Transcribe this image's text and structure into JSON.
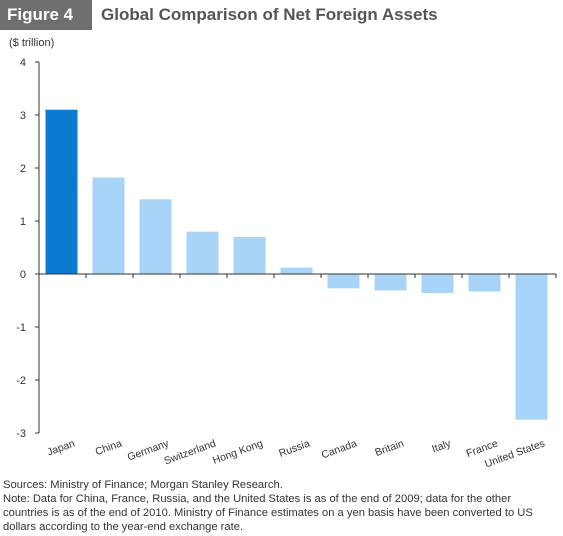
{
  "figure": {
    "badge": "Figure 4",
    "title": "Global Comparison of Net Foreign Assets"
  },
  "chart_data": {
    "type": "bar",
    "ylabel": "($ trillion)",
    "ylim": [
      -3,
      4
    ],
    "yticks": [
      4,
      3,
      2,
      1,
      0,
      -1,
      -2,
      -3
    ],
    "categories": [
      "Japan",
      "China",
      "Germany",
      "Switzerland",
      "Hong Kong",
      "Russia",
      "Canada",
      "Britain",
      "Italy",
      "France",
      "United States"
    ],
    "values": [
      3.1,
      1.82,
      1.41,
      0.8,
      0.7,
      0.12,
      -0.27,
      -0.31,
      -0.36,
      -0.33,
      -2.75
    ],
    "colors": {
      "highlight": "#0a7bd1",
      "default": "#a8d4f7",
      "axis": "#333333"
    },
    "highlight_category": "Japan",
    "grid": false
  },
  "footer": {
    "sources": "Sources: Ministry of Finance; Morgan Stanley Research.",
    "note": "Note: Data for China, France, Russia, and the United States is as of the end of 2009; data for the other countries is as of the end of 2010. Ministry of Finance estimates on a yen basis have been converted to US dollars according to the year-end exchange rate."
  }
}
